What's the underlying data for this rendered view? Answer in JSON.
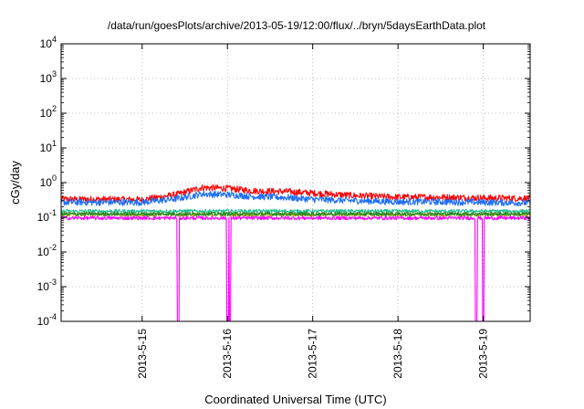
{
  "chart_data": {
    "type": "line",
    "title": "/data/run/goesPlots/archive/2013-05-19/12:00/flux/../bryn/5daysEarthData.plot",
    "xlabel": "Coordinated Universal Time (UTC)",
    "ylabel": "cGy/day",
    "yscale": "log",
    "ylim": [
      0.0001,
      10000
    ],
    "xlim": [
      14.05,
      19.55
    ],
    "x_units": "day of May 2013",
    "y_ticks": [
      {
        "value": 0.0001,
        "base": "10",
        "exp": "-4"
      },
      {
        "value": 0.001,
        "base": "10",
        "exp": "-3"
      },
      {
        "value": 0.01,
        "base": "10",
        "exp": "-2"
      },
      {
        "value": 0.1,
        "base": "10",
        "exp": "-1"
      },
      {
        "value": 1,
        "base": "10",
        "exp": "0"
      },
      {
        "value": 10,
        "base": "10",
        "exp": "1"
      },
      {
        "value": 100,
        "base": "10",
        "exp": "2"
      },
      {
        "value": 1000,
        "base": "10",
        "exp": "3"
      },
      {
        "value": 10000,
        "base": "10",
        "exp": "4"
      }
    ],
    "x_ticks": [
      {
        "value": 15,
        "label": "2013-5-15"
      },
      {
        "value": 16,
        "label": "2013-5-16"
      },
      {
        "value": 17,
        "label": "2013-5-17"
      },
      {
        "value": 18,
        "label": "2013-5-18"
      },
      {
        "value": 19,
        "label": "2013-5-19"
      }
    ],
    "grid": true,
    "series": [
      {
        "color": "#ff0000",
        "x": [
          14.05,
          14.5,
          15.0,
          15.4,
          15.7,
          16.0,
          16.3,
          16.7,
          17.0,
          17.5,
          18.0,
          18.5,
          19.0,
          19.55
        ],
        "values": [
          0.33,
          0.33,
          0.32,
          0.45,
          0.72,
          0.68,
          0.58,
          0.55,
          0.5,
          0.42,
          0.38,
          0.38,
          0.36,
          0.35
        ]
      },
      {
        "color": "#1e6ff5",
        "x": [
          14.05,
          14.5,
          15.0,
          15.4,
          15.7,
          16.0,
          16.3,
          16.7,
          17.0,
          17.5,
          18.0,
          18.5,
          19.0,
          19.55
        ],
        "values": [
          0.27,
          0.27,
          0.27,
          0.34,
          0.47,
          0.45,
          0.4,
          0.37,
          0.33,
          0.3,
          0.28,
          0.28,
          0.27,
          0.26
        ]
      },
      {
        "color": "#1fbf8f",
        "x": [
          14.05,
          19.55
        ],
        "values": [
          0.15,
          0.15
        ]
      },
      {
        "color": "#9a9a00",
        "x": [
          14.05,
          19.55
        ],
        "values": [
          0.12,
          0.12
        ]
      },
      {
        "color": "#2a8a2a",
        "x": [
          14.05,
          19.55
        ],
        "values": [
          0.125,
          0.125
        ]
      },
      {
        "color": "#ff00ff",
        "x": [
          14.05,
          19.55
        ],
        "values": [
          0.095,
          0.095
        ],
        "dropouts": [
          15.42,
          16.0,
          16.03,
          18.92,
          19.0
        ]
      }
    ]
  }
}
